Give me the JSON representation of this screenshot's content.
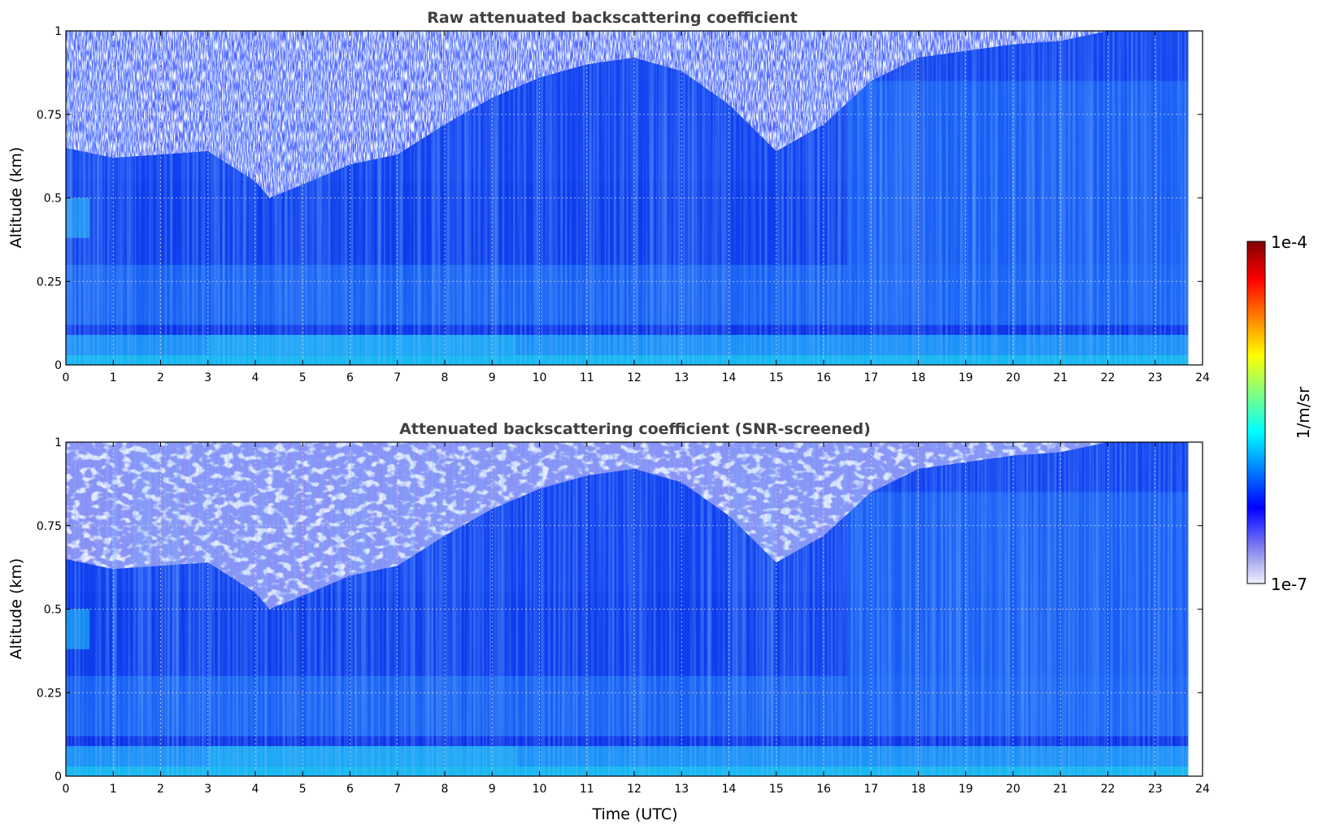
{
  "chart_data": [
    {
      "type": "heatmap",
      "title": "Raw attenuated backscattering coefficient",
      "xlabel": "",
      "ylabel": "Altitude (km)",
      "xlim": [
        0,
        24
      ],
      "ylim": [
        0,
        1
      ],
      "xticks": [
        "0",
        "1",
        "2",
        "3",
        "4",
        "5",
        "6",
        "7",
        "8",
        "9",
        "10",
        "11",
        "12",
        "13",
        "14",
        "15",
        "16",
        "17",
        "18",
        "19",
        "20",
        "21",
        "22",
        "23",
        "24"
      ],
      "yticks": [
        "0",
        "0.25",
        "0.5",
        "0.75",
        "1"
      ],
      "data_x_end": 23.7,
      "grid": true,
      "noise_boundary": {
        "time": [
          0,
          1,
          2,
          3,
          4,
          4.3,
          5,
          6,
          7,
          8,
          9,
          10,
          11,
          12,
          13,
          14,
          15,
          16,
          17,
          18,
          19,
          20,
          21,
          22,
          23.7
        ],
        "altitude": [
          0.65,
          0.62,
          0.63,
          0.64,
          0.55,
          0.5,
          0.54,
          0.6,
          0.63,
          0.72,
          0.8,
          0.86,
          0.9,
          0.92,
          0.88,
          0.78,
          0.64,
          0.72,
          0.85,
          0.92,
          0.94,
          0.96,
          0.97,
          1.0,
          1.0
        ]
      },
      "screened": false
    },
    {
      "type": "heatmap",
      "title": "Attenuated backscattering coefficient (SNR-screened)",
      "xlabel": "Time (UTC)",
      "ylabel": "Altitude (km)",
      "xlim": [
        0,
        24
      ],
      "ylim": [
        0,
        1
      ],
      "xticks": [
        "0",
        "1",
        "2",
        "3",
        "4",
        "5",
        "6",
        "7",
        "8",
        "9",
        "10",
        "11",
        "12",
        "13",
        "14",
        "15",
        "16",
        "17",
        "18",
        "19",
        "20",
        "21",
        "22",
        "23",
        "24"
      ],
      "yticks": [
        "0",
        "0.25",
        "0.5",
        "0.75",
        "1"
      ],
      "data_x_end": 23.7,
      "grid": true,
      "noise_boundary": {
        "time": [
          0,
          1,
          2,
          3,
          4,
          4.3,
          5,
          6,
          7,
          8,
          9,
          10,
          11,
          12,
          13,
          14,
          15,
          16,
          17,
          18,
          19,
          20,
          21,
          22,
          23.7
        ],
        "altitude": [
          0.65,
          0.62,
          0.63,
          0.64,
          0.55,
          0.5,
          0.54,
          0.6,
          0.63,
          0.72,
          0.8,
          0.86,
          0.9,
          0.92,
          0.88,
          0.78,
          0.64,
          0.72,
          0.85,
          0.92,
          0.94,
          0.96,
          0.97,
          1.0,
          1.0
        ]
      },
      "screened": true
    }
  ],
  "colorbar": {
    "min_label": "1e-7",
    "max_label": "1e-4",
    "label": "1/m/sr",
    "scale": "log",
    "colormap": [
      "#f0f0ff",
      "#b4b8f0",
      "#7878f0",
      "#3c3cff",
      "#0000ff",
      "#0040ff",
      "#0080ff",
      "#00c0ff",
      "#00ffff",
      "#40ffc0",
      "#80ff80",
      "#c0ff40",
      "#ffff00",
      "#ffc000",
      "#ff8000",
      "#ff4000",
      "#ff0000",
      "#c00000",
      "#800000"
    ]
  }
}
